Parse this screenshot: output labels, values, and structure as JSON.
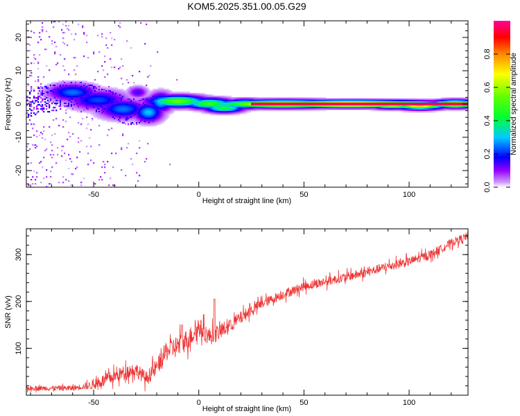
{
  "title": "KOM5.2025.351.00.05.G29",
  "chart_data": [
    {
      "type": "heatmap",
      "xlabel": "Height of straight line (km)",
      "ylabel": "Frequency (Hz)",
      "xlim": [
        -82,
        128
      ],
      "ylim": [
        -25,
        25
      ],
      "xticks": [
        -50,
        0,
        50,
        100
      ],
      "yticks": [
        -20,
        -10,
        0,
        10,
        20
      ],
      "colorbar": {
        "label": "Normalized spectral amplitude",
        "range": [
          0,
          1
        ],
        "ticks": [
          0.0,
          0.2,
          0.4,
          0.6,
          0.8
        ],
        "tick_labels": [
          "0.0",
          "0.2",
          "0.4",
          "0.6",
          "0.8"
        ]
      },
      "ridge": [
        {
          "x": -82,
          "f": 0
        },
        {
          "x": -60,
          "f": 3.2
        },
        {
          "x": -45,
          "f": 1
        },
        {
          "x": -35,
          "f": -2
        },
        {
          "x": -25,
          "f": -2.5
        },
        {
          "x": -15,
          "f": 0.5
        },
        {
          "x": -5,
          "f": 0.8
        },
        {
          "x": 5,
          "f": 0.2
        },
        {
          "x": 12,
          "f": -1.2
        },
        {
          "x": 25,
          "f": 0
        },
        {
          "x": 60,
          "f": 0
        },
        {
          "x": 128,
          "f": 0
        }
      ],
      "blobs": [
        {
          "x": -60,
          "f": 3.5,
          "w": 10,
          "h": 2.2,
          "a": 0.25
        },
        {
          "x": -48,
          "f": 1.2,
          "w": 12,
          "h": 2.5,
          "a": 0.22
        },
        {
          "x": -36,
          "f": -1.5,
          "w": 10,
          "h": 2.5,
          "a": 0.25
        },
        {
          "x": -29,
          "f": 3.5,
          "w": 4,
          "h": 1.5,
          "a": 0.15
        },
        {
          "x": -24,
          "f": -2.5,
          "w": 6,
          "h": 2.5,
          "a": 0.3
        },
        {
          "x": -18,
          "f": 0.5,
          "w": 5,
          "h": 2.5,
          "a": 0.3
        },
        {
          "x": -10,
          "f": 0.8,
          "w": 12,
          "h": 1.5,
          "a": 0.55
        },
        {
          "x": 5,
          "f": 0.1,
          "w": 10,
          "h": 1.4,
          "a": 0.5
        },
        {
          "x": 12,
          "f": -1.2,
          "w": 8,
          "h": 1.2,
          "a": 0.45
        },
        {
          "x": 22,
          "f": 0,
          "w": 8,
          "h": 1.2,
          "a": 0.5
        },
        {
          "x": 40,
          "f": 0,
          "w": 30,
          "h": 1.0,
          "a": 0.8
        },
        {
          "x": 72,
          "f": 0,
          "w": 40,
          "h": 0.9,
          "a": 1.0
        },
        {
          "x": 92,
          "f": -0.2,
          "w": 10,
          "h": 1.0,
          "a": 0.7
        },
        {
          "x": 105,
          "f": -0.5,
          "w": 10,
          "h": 1.0,
          "a": 0.75
        },
        {
          "x": 122,
          "f": 0,
          "w": 10,
          "h": 1.0,
          "a": 0.8
        }
      ]
    },
    {
      "type": "line",
      "xlabel": "Height of straight line (km)",
      "ylabel": "SNR (v/v)",
      "xlim": [
        -82,
        128
      ],
      "ylim": [
        0,
        355
      ],
      "xticks": [
        -50,
        0,
        50,
        100
      ],
      "yticks": [
        100,
        200,
        300
      ],
      "series": [
        {
          "name": "SNR",
          "color": "#ee3333",
          "trend_x": [
            -82,
            -60,
            -50,
            -45,
            -40,
            -35,
            -30,
            -25,
            -20,
            -15,
            -10,
            -5,
            0,
            5,
            10,
            15,
            20,
            25,
            30,
            40,
            50,
            60,
            70,
            80,
            90,
            100,
            110,
            115,
            120,
            128
          ],
          "trend_y": [
            15,
            15,
            22,
            32,
            40,
            50,
            55,
            35,
            60,
            95,
            105,
            120,
            145,
            125,
            135,
            150,
            165,
            182,
            195,
            215,
            232,
            242,
            252,
            262,
            275,
            285,
            300,
            312,
            325,
            340
          ],
          "noise": [
            {
              "x": -82,
              "a": 7
            },
            {
              "x": -55,
              "a": 9
            },
            {
              "x": -45,
              "a": 20
            },
            {
              "x": -25,
              "a": 22
            },
            {
              "x": -10,
              "a": 35
            },
            {
              "x": 10,
              "a": 25
            },
            {
              "x": 30,
              "a": 15
            },
            {
              "x": 60,
              "a": 14
            },
            {
              "x": 100,
              "a": 14
            },
            {
              "x": 128,
              "a": 12
            }
          ],
          "spikes": [
            {
              "x": 7.5,
              "y": 205
            },
            {
              "x": 15,
              "y": 160
            },
            {
              "x": -8,
              "y": 150
            }
          ]
        }
      ]
    }
  ]
}
